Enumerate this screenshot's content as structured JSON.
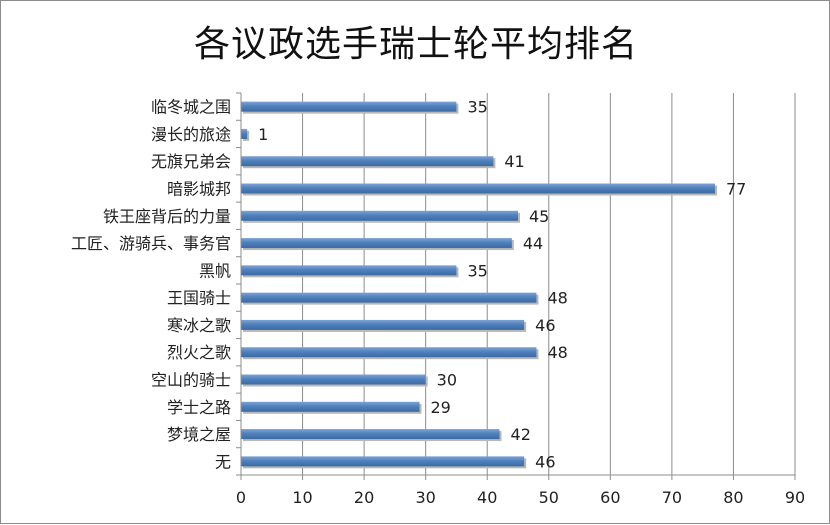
{
  "chart_data": {
    "type": "bar",
    "orientation": "horizontal",
    "title": "各议政选手瑞士轮平均排名",
    "xlabel": "",
    "ylabel": "",
    "categories": [
      "临冬城之围",
      "漫长的旅途",
      "无旗兄弟会",
      "暗影城邦",
      "铁王座背后的力量",
      "工匠、游骑兵、事务官",
      "黑帆",
      "王国骑士",
      "寒冰之歌",
      "烈火之歌",
      "空山的骑士",
      "学士之路",
      "梦境之屋",
      "无"
    ],
    "values": [
      35,
      1,
      41,
      77,
      45,
      44,
      35,
      48,
      46,
      48,
      30,
      29,
      42,
      46
    ],
    "xlim": [
      0,
      90
    ],
    "xticks": [
      0,
      10,
      20,
      30,
      40,
      50,
      60,
      70,
      80,
      90
    ],
    "grid": "vertical",
    "legend": "none",
    "bar_color": "#4f81bd",
    "grid_color": "#8c8c8c"
  }
}
